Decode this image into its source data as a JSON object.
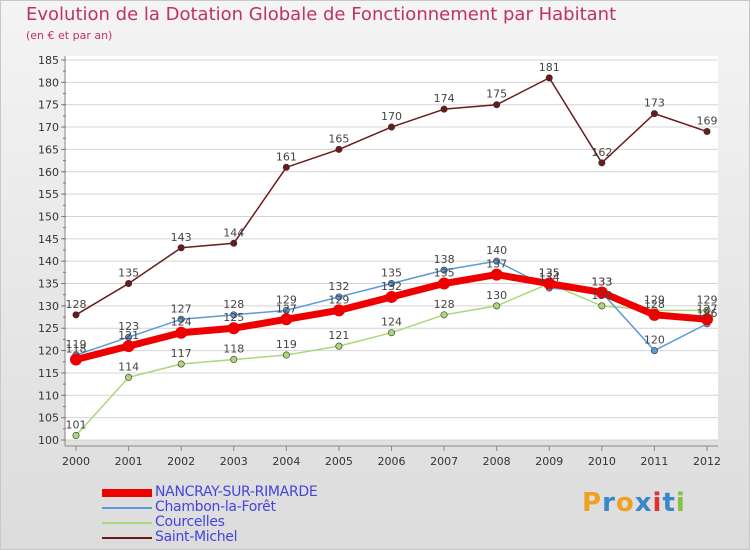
{
  "title": "Evolution de la Dotation Globale de Fonctionnement par Habitant",
  "subtitle": "(en € et par an)",
  "logo": {
    "letters": [
      "P",
      "r",
      "o",
      "x",
      "i",
      "t",
      "i"
    ],
    "colors": [
      "#f0a020",
      "#3a86c8",
      "#f0a020",
      "#3a86c8",
      "#e03030",
      "#3a86c8",
      "#88c040"
    ]
  },
  "chart_data": {
    "type": "line",
    "title": "Evolution de la Dotation Globale de Fonctionnement par Habitant",
    "xlabel": "",
    "ylabel": "(en € et par an)",
    "ylim": [
      100,
      185
    ],
    "grid": "horizontal",
    "categories": [
      "2000",
      "2001",
      "2002",
      "2003",
      "2004",
      "2005",
      "2006",
      "2007",
      "2008",
      "2009",
      "2010",
      "2011",
      "2012"
    ],
    "yticks": [
      "100",
      "105",
      "110",
      "115",
      "120",
      "125",
      "130",
      "135",
      "140",
      "145",
      "150",
      "155",
      "160",
      "165",
      "170",
      "175",
      "180",
      "185"
    ],
    "series": [
      {
        "name": "Saint-Michel",
        "color": "#6b1a1a",
        "values": [
          128,
          135,
          143,
          144,
          161,
          165,
          170,
          174,
          175,
          181,
          162,
          173,
          169
        ],
        "labels": [
          "128",
          "135",
          "143",
          "144",
          "161",
          "165",
          "170",
          "174",
          "175",
          "181",
          "162",
          "173",
          "169"
        ]
      },
      {
        "name": "Courcelles",
        "color": "#a8d878",
        "values": [
          101,
          114,
          117,
          118,
          119,
          121,
          124,
          128,
          130,
          135,
          130,
          129,
          129
        ],
        "labels": [
          "101",
          "114",
          "117",
          "118",
          "119",
          "121",
          "124",
          "128",
          "130",
          "135",
          "130",
          "129",
          "129"
        ]
      },
      {
        "name": "Chambon-la-Forêt",
        "color": "#5a9ad8",
        "values": [
          119,
          123,
          127,
          128,
          129,
          132,
          135,
          138,
          140,
          134,
          133,
          120,
          126
        ],
        "labels": [
          "119",
          "123",
          "127",
          "128",
          "129",
          "132",
          "135",
          "138",
          "140",
          "134",
          "133",
          "120",
          "126"
        ]
      },
      {
        "name": "NANCRAY-SUR-RIMARDE",
        "color": "#ee0000",
        "values": [
          118,
          121,
          124,
          125,
          127,
          129,
          132,
          135,
          137,
          135,
          133,
          128,
          127
        ],
        "labels": [
          "118",
          "121",
          "124",
          "125",
          "127",
          "129",
          "132",
          "135",
          "137",
          "135",
          "133",
          "128",
          "127"
        ]
      }
    ],
    "legend": [
      {
        "name": "NANCRAY-SUR-RIMARDE",
        "color": "#ee0000",
        "thickness": 8
      },
      {
        "name": "Chambon-la-Forêt",
        "color": "#5a9ad8",
        "thickness": 2
      },
      {
        "name": "Courcelles",
        "color": "#a8d878",
        "thickness": 2
      },
      {
        "name": "Saint-Michel",
        "color": "#6b1a1a",
        "thickness": 2
      }
    ]
  }
}
